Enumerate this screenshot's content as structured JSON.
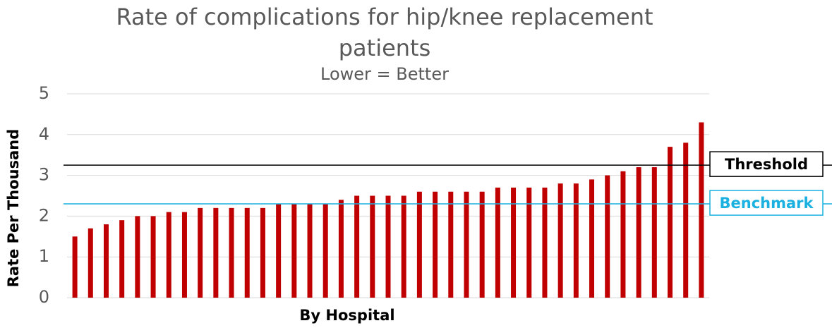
{
  "chart_data": {
    "type": "bar",
    "title": "Rate of complications for hip/knee replacement patients",
    "subtitle": "Lower = Better",
    "x_label": "By Hospital",
    "y_label": "Rate Per Thousand",
    "categories": [
      null,
      null,
      null,
      null,
      null,
      null,
      null,
      null,
      null,
      null,
      null,
      null,
      null,
      null,
      null,
      null,
      null,
      null,
      null,
      null,
      null,
      null,
      null,
      null,
      null,
      null,
      null,
      null,
      null,
      null,
      null,
      null,
      null,
      null,
      null,
      null,
      null,
      null,
      null,
      null,
      null
    ],
    "values": [
      1.5,
      1.7,
      1.8,
      1.9,
      2.0,
      2.0,
      2.1,
      2.1,
      2.2,
      2.2,
      2.2,
      2.2,
      2.2,
      2.3,
      2.3,
      2.3,
      2.3,
      2.4,
      2.5,
      2.5,
      2.5,
      2.5,
      2.6,
      2.6,
      2.6,
      2.6,
      2.6,
      2.7,
      2.7,
      2.7,
      2.7,
      2.8,
      2.8,
      2.9,
      3.0,
      3.1,
      3.2,
      3.2,
      3.7,
      3.8,
      4.3
    ],
    "color": "#c00000",
    "ylim": [
      0,
      5
    ],
    "yticks": [
      0,
      1,
      2,
      3,
      4,
      5
    ],
    "grid": true,
    "reference_lines": [
      {
        "name": "Threshold",
        "value": 3.25,
        "color": "#000000"
      },
      {
        "name": "Benchmark",
        "value": 2.3,
        "color": "#1ab0e0"
      }
    ]
  }
}
